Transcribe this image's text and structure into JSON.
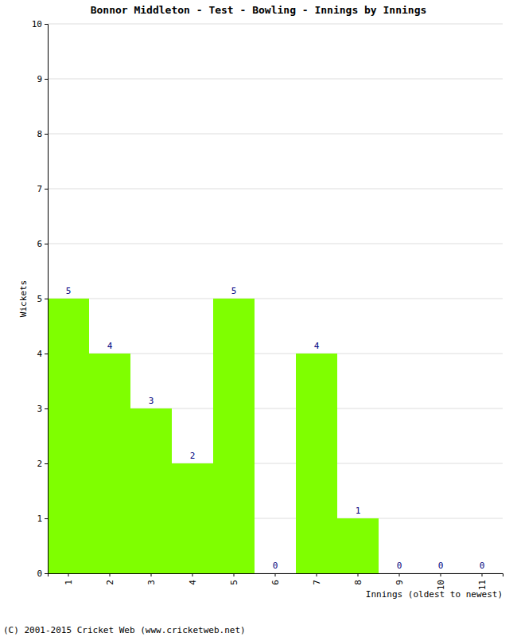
{
  "chart_data": {
    "type": "bar",
    "title": "Bonnor Middleton - Test - Bowling - Innings by Innings",
    "x_label": "Innings (oldest to newest)",
    "y_label": "Wickets",
    "annotations": [
      "(C) 2001-2015 Cricket Web (www.cricketweb.net)"
    ],
    "categories": [
      "1",
      "2",
      "3",
      "4",
      "5",
      "6",
      "7",
      "8",
      "9",
      "10",
      "11"
    ],
    "values": [
      5,
      4,
      3,
      2,
      5,
      0,
      4,
      1,
      0,
      0,
      0
    ],
    "color": "#7fff00",
    "ylim": [
      0,
      10
    ],
    "yticks": [
      0,
      1,
      2,
      3,
      4,
      5,
      6,
      7,
      8,
      9,
      10
    ],
    "grid": true,
    "data_labels": true
  }
}
